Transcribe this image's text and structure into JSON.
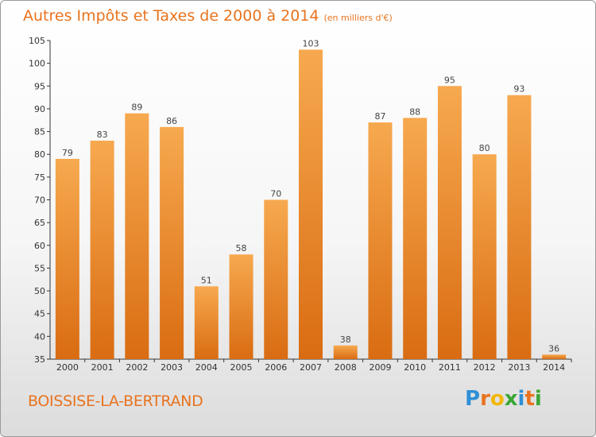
{
  "header": {
    "title": "Autres Impôts et Taxes de 2000 à 2014",
    "unit": "(en milliers d'€)"
  },
  "footer": {
    "commune": "BOISSISE-LA-BERTRAND",
    "logo": "Proxiti",
    "logo_colors": [
      "#2f8fd6",
      "#e8731e",
      "#f2b705",
      "#3aa635",
      "#2f8fd6",
      "#e8731e",
      "#3aa635"
    ]
  },
  "colors": {
    "bar_light": "#f7a94f",
    "bar_dark": "#d96c12",
    "accent": "#e8731e"
  },
  "chart_data": {
    "type": "bar",
    "title": "Autres Impôts et Taxes de 2000 à 2014",
    "subtitle": "(en milliers d'€)",
    "xlabel": "",
    "ylabel": "",
    "categories": [
      "2000",
      "2001",
      "2002",
      "2003",
      "2004",
      "2005",
      "2006",
      "2007",
      "2008",
      "2009",
      "2010",
      "2011",
      "2012",
      "2013",
      "2014"
    ],
    "values": [
      79,
      83,
      89,
      86,
      51,
      58,
      70,
      103,
      38,
      87,
      88,
      95,
      80,
      93,
      36
    ],
    "ylim": [
      35,
      105
    ],
    "yticks": [
      35,
      40,
      45,
      50,
      55,
      60,
      65,
      70,
      75,
      80,
      85,
      90,
      95,
      100,
      105
    ],
    "grid": false,
    "legend": "none"
  }
}
